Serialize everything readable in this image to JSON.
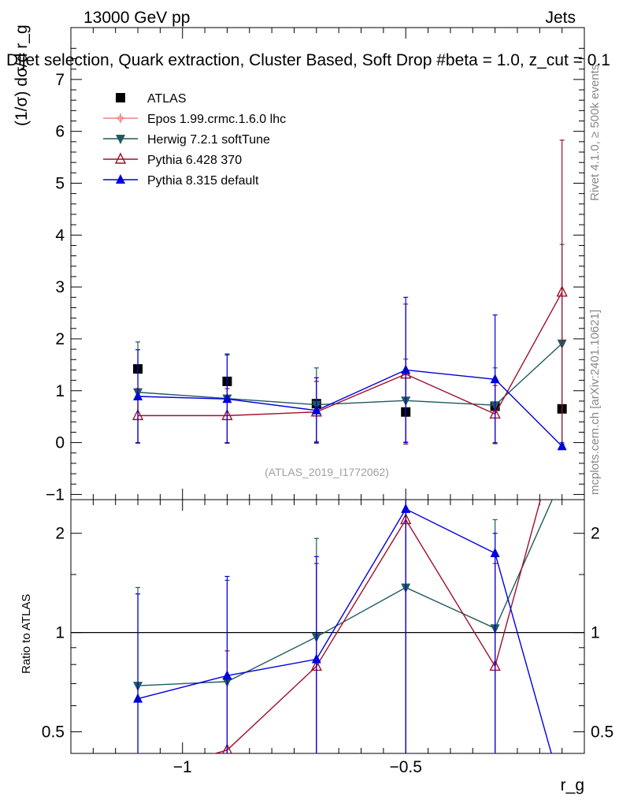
{
  "header": {
    "energy_label": "13000 GeV pp",
    "category_label": "Jets",
    "plot_title": "Dijet selection, Quark extraction, Cluster Based, Soft Drop #beta = 1.0, z_cut = 0.1"
  },
  "side_labels": {
    "rivet": "Rivet 4.1.0, ≥ 500k events",
    "mcplots": "mcplots.cern.ch [arXiv:2401.10621]"
  },
  "watermark": "(ATLAS_2019_I1772062)",
  "main_ylabel": "(1/σ) dσ/d r_g",
  "ratio_ylabel": "Ratio to ATLAS",
  "xlabel": "r_g",
  "chart_data": [
    {
      "id": "main",
      "type": "line",
      "x": [
        -1.1,
        -0.9,
        -0.7,
        -0.5,
        -0.3,
        -0.15
      ],
      "xlim": [
        -1.25,
        -0.1
      ],
      "ylim": [
        -1.1,
        8.0
      ],
      "xticks": [
        {
          "v": -1.0,
          "label": "−1"
        },
        {
          "v": -0.5,
          "label": "−0.5"
        }
      ],
      "yticks": [
        {
          "v": -1,
          "label": "−1"
        },
        {
          "v": 0,
          "label": "0"
        },
        {
          "v": 1,
          "label": "1"
        },
        {
          "v": 2,
          "label": "2"
        },
        {
          "v": 3,
          "label": "3"
        },
        {
          "v": 4,
          "label": "4"
        },
        {
          "v": 5,
          "label": "5"
        },
        {
          "v": 6,
          "label": "6"
        },
        {
          "v": 7,
          "label": "7"
        }
      ],
      "series": [
        {
          "name": "ATLAS",
          "color": "#000000",
          "marker": "square",
          "line": false,
          "values": [
            1.42,
            1.18,
            0.75,
            0.59,
            0.7,
            0.65
          ],
          "err": [
            0.0,
            0.0,
            0.0,
            0.0,
            0.0,
            0.0
          ]
        },
        {
          "name": "Epos 1.99.crmc.1.6.0 lhc",
          "color": "#f08080",
          "marker": "cross",
          "line": true,
          "values": [
            null,
            null,
            null,
            null,
            null,
            null
          ]
        },
        {
          "name": "Herwig 7.2.1 softTune",
          "color": "#1f5a5f",
          "marker": "triangle-down",
          "line": true,
          "values": [
            0.97,
            0.85,
            0.73,
            0.81,
            0.72,
            1.91
          ],
          "err": [
            0.97,
            0.86,
            0.71,
            0.8,
            0.72,
            1.91
          ]
        },
        {
          "name": "Pythia 6.428 370",
          "color": "#a0102a",
          "marker": "triangle-open",
          "line": true,
          "values": [
            0.52,
            0.52,
            0.59,
            1.32,
            0.55,
            2.9
          ],
          "err": [
            0.52,
            0.52,
            0.59,
            1.35,
            0.55,
            2.93
          ]
        },
        {
          "name": "Pythia 8.315 default",
          "color": "#0000dd",
          "marker": "triangle-up",
          "line": true,
          "values": [
            0.89,
            0.84,
            0.62,
            1.4,
            1.22,
            -0.07
          ],
          "err": [
            0.9,
            0.85,
            0.63,
            1.4,
            1.24,
            0.0
          ]
        }
      ]
    },
    {
      "id": "ratio",
      "type": "line",
      "x": [
        -1.1,
        -0.9,
        -0.7,
        -0.5,
        -0.3,
        -0.15
      ],
      "xlim": [
        -1.25,
        -0.1
      ],
      "ylim": [
        0.43,
        2.53
      ],
      "yscale": "log",
      "reference_line": 1.0,
      "yticks": [
        {
          "v": 0.5,
          "label": "0.5"
        },
        {
          "v": 1,
          "label": "1"
        },
        {
          "v": 2,
          "label": "2"
        }
      ],
      "series": [
        {
          "name": "Herwig 7.2.1 softTune",
          "color": "#1f5a5f",
          "marker": "triangle-down",
          "values": [
            0.69,
            0.71,
            0.97,
            1.37,
            1.03,
            2.95
          ],
          "errlo": [
            0.43,
            0.43,
            0.43,
            0.43,
            0.43,
            0
          ],
          "errhi": [
            1.37,
            1.44,
            1.93,
            2.6,
            2.2,
            0
          ]
        },
        {
          "name": "Pythia 6.428 370",
          "color": "#a0102a",
          "marker": "triangle-open",
          "values": [
            0.37,
            0.44,
            0.79,
            2.2,
            0.79,
            4.4
          ],
          "errlo": [
            0.43,
            0.43,
            0.43,
            0.43,
            0.43,
            0
          ],
          "errhi": [
            0.43,
            0.88,
            1.62,
            2.6,
            1.62,
            0
          ]
        },
        {
          "name": "Pythia 8.315 default",
          "color": "#0000dd",
          "marker": "triangle-up",
          "values": [
            0.63,
            0.74,
            0.83,
            2.37,
            1.74,
            0.33
          ],
          "errlo": [
            0.43,
            0.43,
            0.43,
            0.43,
            0.43,
            0
          ],
          "errhi": [
            1.31,
            1.48,
            1.7,
            2.6,
            2.0,
            0
          ]
        }
      ]
    }
  ]
}
